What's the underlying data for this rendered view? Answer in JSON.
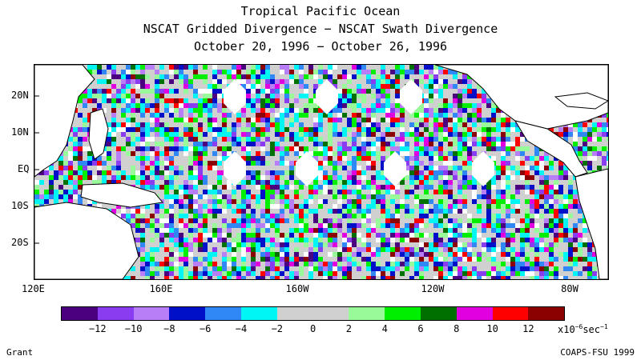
{
  "header": {
    "title": "Tropical Pacific Ocean",
    "subtitle": "NSCAT Gridded Divergence − NSCAT Swath Divergence",
    "date_range": "October 20, 1996 − October 26, 1996"
  },
  "map": {
    "lat_labels": [
      "20N",
      "10N",
      "EQ",
      "10S",
      "20S"
    ],
    "lon_labels": [
      "120E",
      "160E",
      "160W",
      "120W",
      "80W"
    ],
    "lon_range": [
      120,
      290
    ],
    "lat_range": [
      -29,
      29
    ]
  },
  "colorbar": {
    "colors": [
      "#4b0080",
      "#8a3cf0",
      "#b77ef7",
      "#0010c8",
      "#2f88f5",
      "#00f5f5",
      "#d0d0d0",
      "#d0d0d0",
      "#98fa98",
      "#00ee00",
      "#007000",
      "#e000e0",
      "#ff0000",
      "#8b0000"
    ],
    "ticks": [
      "−12",
      "−10",
      "−8",
      "−6",
      "−4",
      "−2",
      "0",
      "2",
      "4",
      "6",
      "8",
      "10",
      "12"
    ],
    "units_base": "x10",
    "units_exp": "−6",
    "units_tail": "sec",
    "units_exp2": "−1"
  },
  "footer": {
    "author": "Grant",
    "credit": "COAPS-FSU 1999"
  }
}
